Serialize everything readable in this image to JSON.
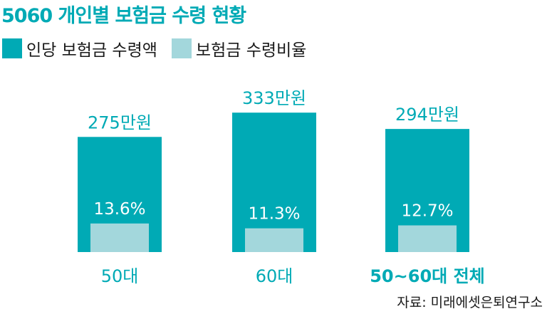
{
  "title": "5060 개인별 보험금 수령 현황",
  "source": "자료: 미래에셋은퇴연구소",
  "colors": {
    "accent": "#00aab5",
    "ratio": "#a3d7dc",
    "text": "#1a1a1a"
  },
  "chart_data": {
    "type": "bar",
    "title": "5060 개인별 보험금 수령 현황",
    "categories": [
      "50대",
      "60대",
      "50~60대 전체"
    ],
    "legend": {
      "placement": "top-left"
    },
    "series": [
      {
        "name": "인당 보험금 수령액",
        "values": [
          275,
          333,
          294
        ],
        "labels": [
          "275만원",
          "333만원",
          "294만원"
        ]
      },
      {
        "name": "보험금 수령비율",
        "values": [
          13.6,
          11.3,
          12.7
        ],
        "labels": [
          "13.6%",
          "11.3%",
          "12.7%"
        ]
      }
    ]
  }
}
